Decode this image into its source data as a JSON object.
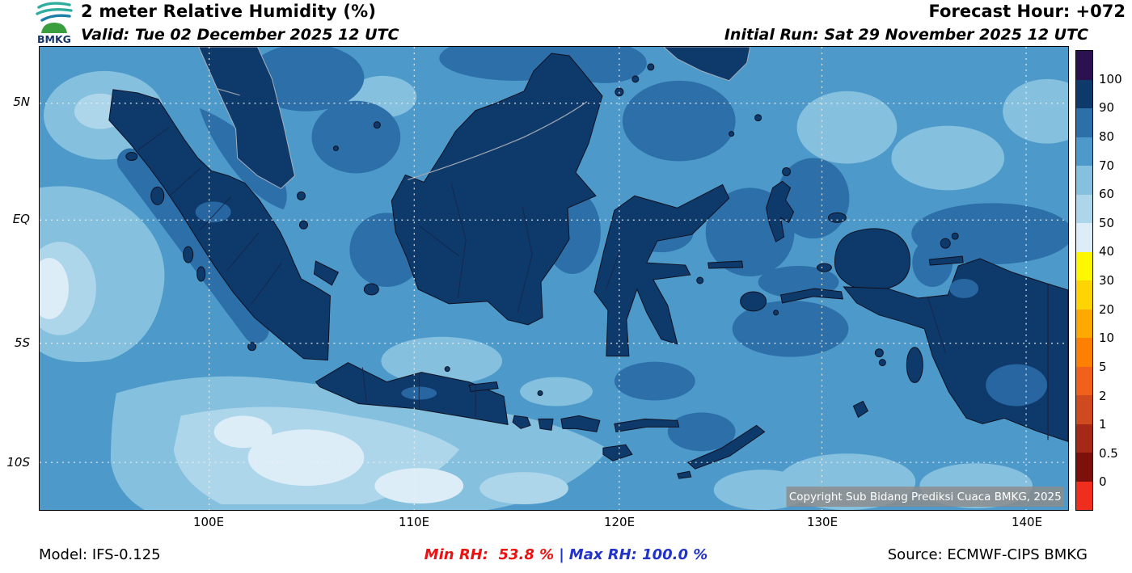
{
  "header": {
    "logo_text": "BMKG",
    "title": "2 meter Relative Humidity (%)",
    "valid_line": "Valid: Tue 02 December 2025 12 UTC",
    "forecast_hour": "Forecast Hour: +072",
    "initial_run": "Initial Run: Sat 29 November 2025 12 UTC"
  },
  "map": {
    "lat_labels": [
      "5N",
      "EQ",
      "5S",
      "10S"
    ],
    "lon_labels": [
      "100E",
      "110E",
      "120E",
      "130E",
      "140E"
    ],
    "copyright": "Copyright Sub Bidang Prediksi Cuaca BMKG, 2025",
    "palette_note_colors": {
      "sea_70_80": "#4d9aca",
      "sea_60_70": "#85c0de",
      "sea_50_60": "#aed6eb",
      "sea_40_50": "#dcedf7",
      "sea_80_90": "#2d6fa9",
      "land_90_100": "#0d3a6b"
    }
  },
  "colorbar": {
    "tick_labels": [
      "100",
      "90",
      "80",
      "70",
      "60",
      "50",
      "40",
      "30",
      "20",
      "10",
      "5",
      "2",
      "1",
      "0.5",
      "0"
    ],
    "segment_colors": [
      "#2b1150",
      "#0d3a6b",
      "#2d6fa9",
      "#4d9aca",
      "#85c0de",
      "#aed6eb",
      "#dcedf7",
      "#fdf702",
      "#fed402",
      "#fea902",
      "#fd8002",
      "#f1611c",
      "#cf4a1e",
      "#a62817",
      "#7e100c",
      "#ef2e1e"
    ]
  },
  "footer": {
    "model": "Model: IFS-0.125",
    "min_rh": "Min RH:  53.8 %",
    "separator": "|",
    "max_rh": "Max RH: 100.0 %",
    "source": "Source: ECMWF-CIPS BMKG"
  }
}
